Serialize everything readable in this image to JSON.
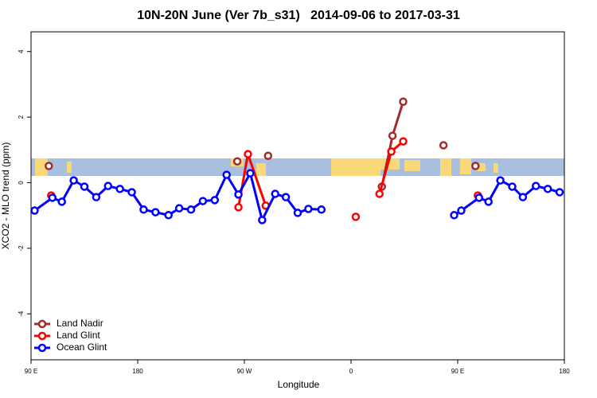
{
  "chart_data": {
    "type": "line",
    "title": "10N-20N June (Ver 7b_s31)   2014-09-06 to 2017-03-31",
    "xlabel": "Longitude",
    "ylabel": "XCO2 - MLO trend (ppm)",
    "xlim": [
      90,
      540
    ],
    "ylim": [
      -5.4,
      4.6
    ],
    "xticks": [
      {
        "value": 90,
        "label": "90 E"
      },
      180,
      {
        "value": 270,
        "label": "90 W"
      },
      {
        "value": 360,
        "label": "0"
      },
      {
        "value": 450,
        "label": "90 E"
      },
      {
        "value": 540,
        "label": "180"
      }
    ],
    "yticks": [
      -4,
      -2,
      0,
      2,
      4
    ],
    "legend": "bottom-left",
    "series": [
      {
        "name": "Land Nadir",
        "color": "#a52a2a",
        "x": [
          105,
          264,
          290,
          386,
          395,
          404,
          438,
          465
        ],
        "values": [
          0.51,
          0.65,
          0.82,
          -0.12,
          1.43,
          2.47,
          1.14,
          0.51
        ]
      },
      {
        "name": "Land Glint",
        "color": "#ff0000",
        "x": [
          107,
          265,
          273,
          288,
          364,
          384,
          394,
          404,
          467
        ],
        "values": [
          -0.39,
          -0.75,
          0.87,
          -0.7,
          -1.04,
          -0.34,
          0.95,
          1.26,
          -0.39
        ]
      },
      {
        "name": "Ocean Glint",
        "color": "#0000ff",
        "x": [
          93,
          108,
          116,
          126,
          135,
          145,
          155,
          165,
          175,
          185,
          195,
          206,
          215,
          225,
          235,
          245,
          255,
          265,
          275,
          285,
          296,
          305,
          315,
          324,
          335,
          447,
          453,
          468,
          476,
          486,
          496,
          505,
          516,
          526,
          536
        ],
        "values": [
          -0.85,
          -0.46,
          -0.58,
          0.07,
          -0.12,
          -0.44,
          -0.1,
          -0.19,
          -0.29,
          -0.82,
          -0.9,
          -0.99,
          -0.78,
          -0.82,
          -0.56,
          -0.53,
          0.24,
          -0.36,
          0.29,
          -1.14,
          -0.34,
          -0.44,
          -0.92,
          -0.8,
          -0.82,
          -0.99,
          -0.85,
          -0.46,
          -0.58,
          0.07,
          -0.12,
          -0.44,
          -0.1,
          -0.19,
          -0.29
        ]
      }
    ]
  }
}
